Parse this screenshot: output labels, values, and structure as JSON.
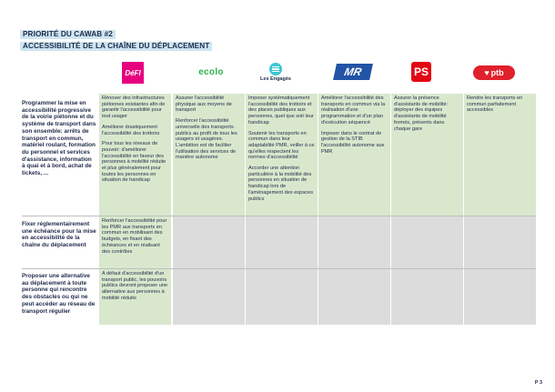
{
  "header": {
    "line1": "PRIORITÉ DU CAWAB #2",
    "line2": "ACCESSIBILITÉ DE LA CHAÎNE DU DÉPLACEMENT"
  },
  "parties": {
    "defi": "DéFI",
    "ecolo": "ecolo",
    "engages": "Les Engagés",
    "mr": "MR",
    "ps": "PS",
    "ptb": "ptb"
  },
  "rows": [
    {
      "header": "Programmer la mise en accessibilité progressive de la voirie piétonne et du système de transport dans son ensemble: arrêts de transport en commun, matériel roulant, formation du personnel et services d'assistance, information à quai et à bord, achat de tickets, ...",
      "cells": [
        [
          "Rénover des infrastructures piétonnes existantes afin de garantir l'accessibilité pour tout usager",
          "Améliorer drastiquement l'accessibilité des trottoirs",
          "Pour tous les niveaux de pouvoir: d'améliorer l'accessibilité en faveur des personnes à mobilité réduite et plus généralement pour toutes les personnes en situation de handicap"
        ],
        [
          "Assurer l'accessibilité physique aux moyens de transport",
          "Renforcer l'accessibilité universelle des transports publics au profit de tous les usagers et usagères. L'ambition est de faciliter l'utilisation des services de manière autonome"
        ],
        [
          "Imposer systématiquement l'accessibilité des trottoirs et des places publiques aux personnes, quel que soit leur handicap",
          "Soutenir les transports en commun dans leur adaptabilité PMR, veiller à ce qu'elles respectent les normes d'accessibilité",
          "Accorder une attention particulière à la mobilité des personnes en situation de handicap lors de l'aménagement des espaces publics"
        ],
        [
          "Améliorer l'accessibilité des transports en commun via la réalisation d'une programmation et d'un plan d'exécution séquencé",
          "Imposer dans le contrat de gestion de la STIB l'accessibilité autonome aux PMR"
        ],
        [
          "Assurer la présence d'assistants de mobilité: déployer des équipes d'assistants de mobilité formés, présents dans chaque gare"
        ],
        [
          "Rendre les transports en commun parfaitement accessibles"
        ]
      ]
    },
    {
      "header": "Fixer réglementairement une échéance pour la mise en accessibilité de la chaîne du déplacement",
      "cells": [
        [
          "Renforcer l'accessibilité pour les PMR aux transports en commun en mobilisant des budgets, en fixant des échéances et en réalisant des contrôles"
        ],
        [],
        [],
        [],
        [],
        []
      ]
    },
    {
      "header": "Proposer une alternative au déplacement à toute personne qui rencontre des obstacles ou qui ne peut accéder au réseau de transport régulier",
      "cells": [
        [
          "A défaut d'accessibilité d'un transport public, les pouvoirs publics devront proposer une alternative aux personnes à mobilité réduite"
        ],
        [],
        [],
        [],
        [],
        []
      ]
    }
  ],
  "footer": {
    "page": "P 3"
  },
  "colors": {
    "green": "#d9e8cd",
    "grey": "#dcdcdc",
    "text": "#1e2a4a",
    "header_bg": "#cde6f1"
  }
}
